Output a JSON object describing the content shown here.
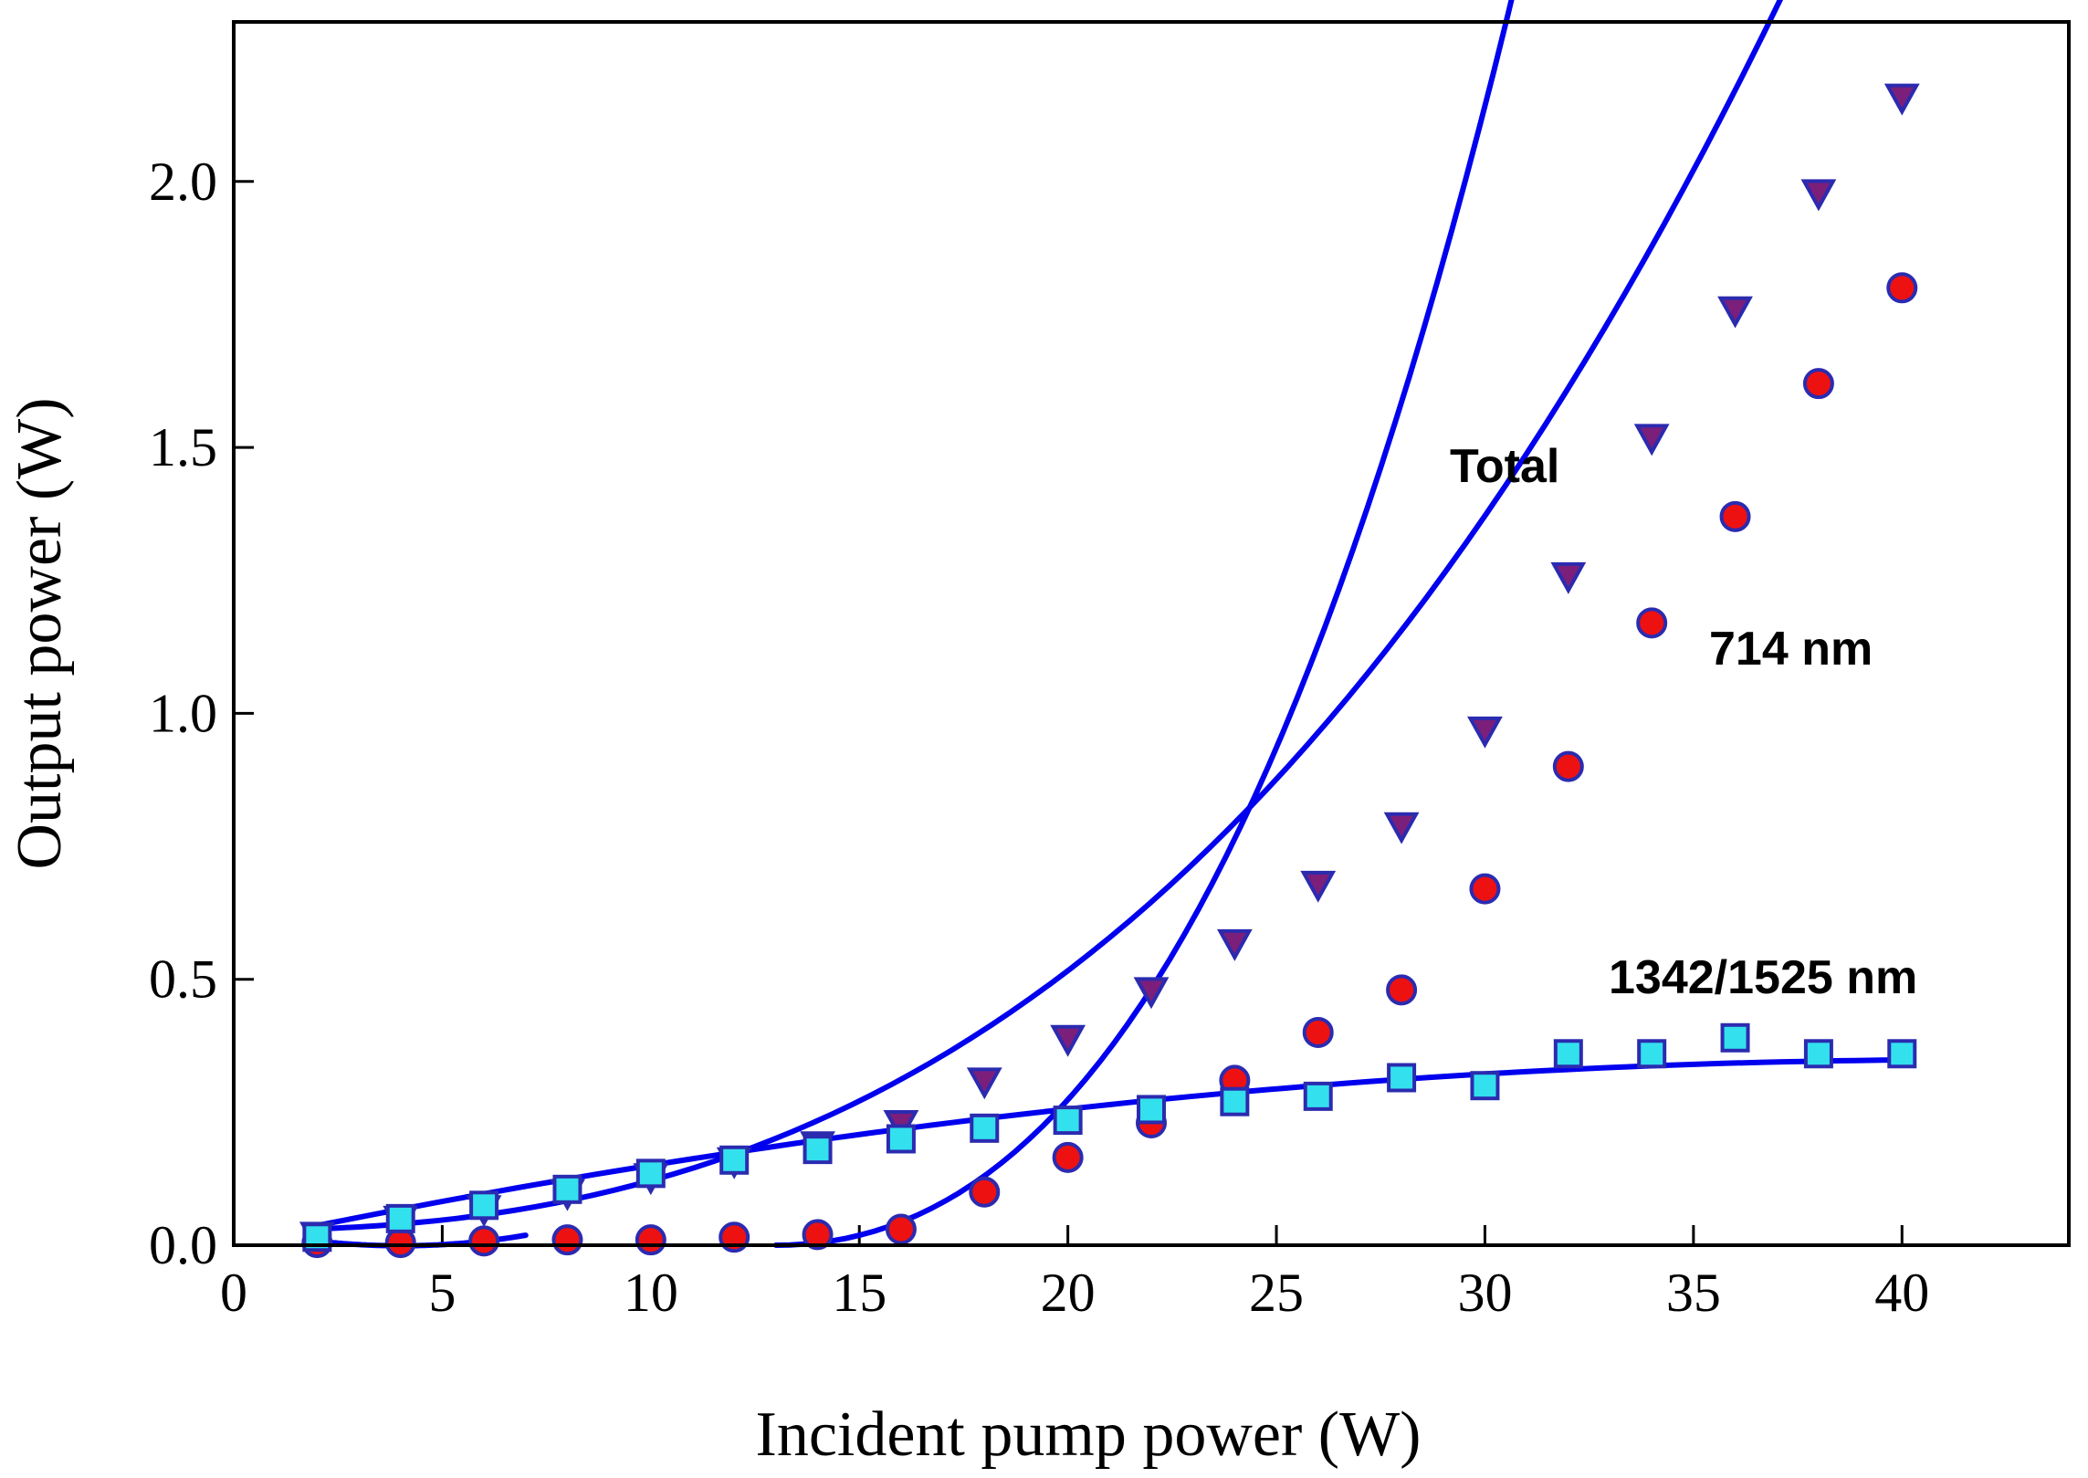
{
  "chart_data": {
    "type": "scatter",
    "title": "",
    "xlabel": "Incident pump power (W)",
    "ylabel": "Output power (W)",
    "xlim": [
      0,
      44
    ],
    "ylim": [
      0,
      2.3
    ],
    "xticks": [
      0,
      5,
      10,
      15,
      20,
      25,
      30,
      35,
      40
    ],
    "xtick_labels": [
      "0",
      "5",
      "10",
      "15",
      "20",
      "25",
      "30",
      "35",
      "40"
    ],
    "yticks": [
      0,
      0.5,
      1.0,
      1.5,
      2.0
    ],
    "ytick_labels": [
      "0.0",
      "0.5",
      "1.0",
      "1.5",
      "2.0"
    ],
    "grid": false,
    "x": [
      2,
      4,
      6,
      8,
      10,
      12,
      14,
      16,
      18,
      20,
      22,
      24,
      26,
      28,
      30,
      32,
      34,
      36,
      38,
      40
    ],
    "series": [
      {
        "name": "Total",
        "label": "Total",
        "marker": "triangle-down",
        "marker_color": "#7b1f7b",
        "edge_color": "#2b2bb0",
        "line_color": "#0000ee",
        "values": [
          0.02,
          0.05,
          0.07,
          0.1,
          0.13,
          0.16,
          0.19,
          0.23,
          0.31,
          0.39,
          0.48,
          0.57,
          0.68,
          0.79,
          0.97,
          1.26,
          1.52,
          1.76,
          1.98,
          2.16
        ],
        "fit_x": [
          2,
          40
        ],
        "fit_poly": [
          0.0289,
          -0.00058,
          0.000719,
          2.64e-05
        ]
      },
      {
        "name": "714 nm",
        "label": "714 nm",
        "marker": "circle",
        "marker_color": "#ee1111",
        "edge_color": "#2b2bb0",
        "line_color": "#0000ee",
        "values": [
          0.005,
          0.005,
          0.008,
          0.01,
          0.01,
          0.015,
          0.02,
          0.03,
          0.1,
          0.165,
          0.23,
          0.31,
          0.4,
          0.48,
          0.67,
          0.9,
          1.17,
          1.37,
          1.62,
          1.8
        ],
        "fit_segments": [
          {
            "x": [
              2,
              7
            ],
            "poly": [
              0.0346,
              -0.0178,
              0.00222,
              0
            ]
          },
          {
            "x": [
              13,
              40
            ],
            "poly": [
              0.0,
              0.0,
              0.0043,
              0.000183
            ],
            "x_offset": 13
          }
        ]
      },
      {
        "name": "1342/1525 nm",
        "label": "1342/1525 nm",
        "marker": "square",
        "marker_color": "#33e0ee",
        "edge_color": "#2b2bb0",
        "line_color": "#0000ee",
        "values": [
          0.015,
          0.05,
          0.075,
          0.105,
          0.135,
          0.16,
          0.18,
          0.2,
          0.22,
          0.235,
          0.255,
          0.27,
          0.28,
          0.315,
          0.3,
          0.36,
          0.36,
          0.39,
          0.36,
          0.36
        ],
        "fit_x": [
          2,
          40
        ],
        "fit_poly": [
          0.00458,
          0.01655,
          -0.000199,
          0
        ]
      }
    ],
    "annotations": [
      "Total",
      "714 nm",
      "1342/1525 nm"
    ]
  }
}
